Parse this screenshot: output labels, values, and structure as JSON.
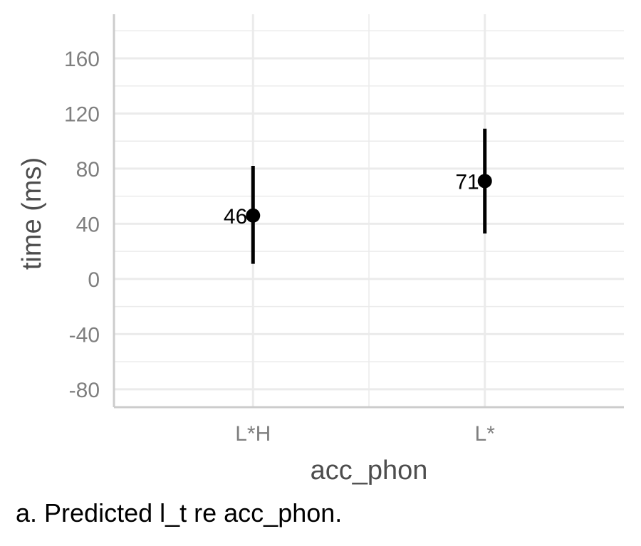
{
  "chart_data": {
    "type": "scatter",
    "subtype": "point-with-errorbars",
    "categories": [
      "L*H",
      "L*"
    ],
    "values": [
      46,
      71
    ],
    "lower": [
      11,
      33
    ],
    "upper": [
      82,
      109
    ],
    "data_labels": [
      "46",
      "71"
    ],
    "xlabel": "acc_phon",
    "ylabel": "time (ms)",
    "ylim": [
      -93,
      192
    ],
    "yticks": [
      -80,
      -40,
      0,
      40,
      80,
      120,
      160
    ],
    "ytick_labels": [
      "-80",
      "-40",
      "0",
      "40",
      "80",
      "120",
      "160"
    ],
    "grid": true,
    "colors": {
      "point": "#000000",
      "grid": "#ebebeb",
      "axis": "#cccccc",
      "tick_text": "#7f7f7f",
      "title_text": "#4d4d4d"
    }
  },
  "caption": "a. Predicted l_t re acc_phon."
}
